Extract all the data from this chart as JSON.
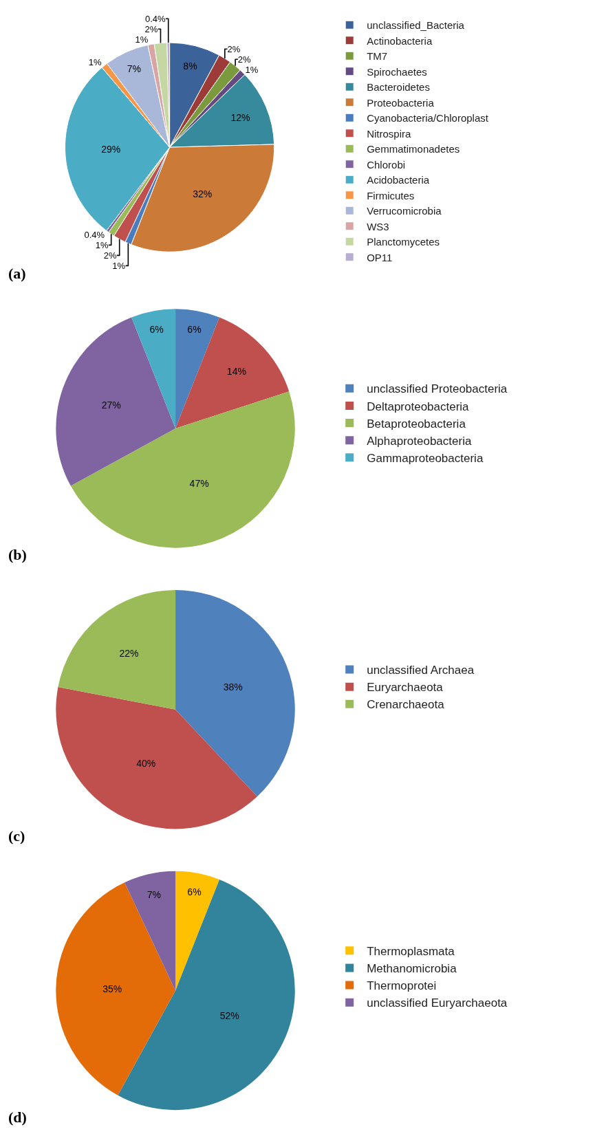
{
  "chart_data": [
    {
      "type": "pie",
      "annotations": [
        "(a)"
      ],
      "legend": "right",
      "categories": [
        "unclassified_Bacteria",
        "Actinobacteria",
        "TM7",
        "Spirochaetes",
        "Bacteroidetes",
        "Proteobacteria",
        "Cyanobacteria/Chloroplast",
        "Nitrospira",
        "Gemmatimonadetes",
        "Chlorobi",
        "Acidobacteria",
        "Firmicutes",
        "Verrucomicrobia",
        "WS3",
        "Planctomycetes",
        "OP11"
      ],
      "values": [
        8,
        2,
        2,
        1,
        12,
        32,
        1,
        2,
        1,
        0.4,
        29,
        1,
        7,
        1,
        2,
        0.4
      ],
      "value_labels": [
        "8%",
        "2%",
        "2%",
        "1%",
        "12%",
        "32%",
        "1%",
        "2%",
        "1%",
        "0.4%",
        "29%",
        "1%",
        "7%",
        "1%",
        "2%",
        "0.4%"
      ],
      "colors": [
        "#3c6399",
        "#9c3b37",
        "#7a9a3d",
        "#634a82",
        "#378a9c",
        "#cc7a38",
        "#4a7cc0",
        "#c0504d",
        "#9bbb59",
        "#8064a2",
        "#4bacc6",
        "#f79646",
        "#a9b8d8",
        "#d9a5a4",
        "#c5d8a4",
        "#b8aed0"
      ]
    },
    {
      "type": "pie",
      "annotations": [
        "(b)"
      ],
      "legend": "right",
      "categories": [
        "unclassified Proteobacteria",
        "Deltaproteobacteria",
        "Betaproteobacteria",
        "Alphaproteobacteria",
        "Gammaproteobacteria"
      ],
      "values": [
        6,
        14,
        47,
        27,
        6
      ],
      "value_labels": [
        "6%",
        "14%",
        "47%",
        "27%",
        "6%"
      ],
      "colors": [
        "#4f81bd",
        "#c0504d",
        "#9bbb59",
        "#8064a2",
        "#4bacc6"
      ]
    },
    {
      "type": "pie",
      "annotations": [
        "(c)"
      ],
      "legend": "right",
      "categories": [
        "unclassified Archaea",
        "Euryarchaeota",
        "Crenarchaeota"
      ],
      "values": [
        38,
        40,
        22
      ],
      "value_labels": [
        "38%",
        "40%",
        "22%"
      ],
      "colors": [
        "#4f81bd",
        "#c0504d",
        "#9bbb59"
      ]
    },
    {
      "type": "pie",
      "annotations": [
        "(d)"
      ],
      "legend": "right",
      "categories": [
        "Thermoplasmata",
        "Methanomicrobia",
        "Thermoprotei",
        "unclassified Euryarchaeota"
      ],
      "values": [
        6,
        52,
        35,
        7
      ],
      "value_labels": [
        "6%",
        "52%",
        "35%",
        "7%"
      ],
      "colors": [
        "#ffc000",
        "#31849b",
        "#e36c09",
        "#8064a2"
      ]
    }
  ]
}
